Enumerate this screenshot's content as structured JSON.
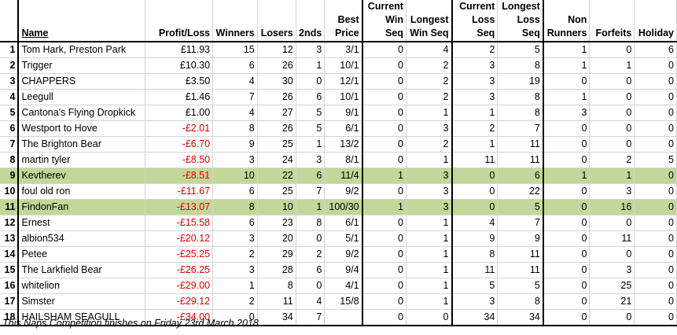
{
  "headers": {
    "name": "Name",
    "profit": "Profit/Loss",
    "winners": "Winners",
    "losers": "Losers",
    "seconds": "2nds",
    "best_price": "Best Price",
    "cur_win": "Current Win Seq",
    "long_win": "Longest Win Seq",
    "cur_loss": "Current Loss Seq",
    "long_loss": "Longest Loss Seq",
    "non_runners": "Non Runners",
    "forfeits": "Forfeits",
    "holiday": "Holiday"
  },
  "rows": [
    {
      "pos": "1",
      "name": "Tom Hark, Preston Park",
      "profit": "£11.93",
      "winners": "15",
      "losers": "12",
      "seconds": "3",
      "best": "3/1",
      "cw": "0",
      "lw": "4",
      "cl": "2",
      "ll": "5",
      "nr": "1",
      "ff": "0",
      "hol": "6"
    },
    {
      "pos": "2",
      "name": "Trigger",
      "profit": "£10.30",
      "winners": "6",
      "losers": "26",
      "seconds": "1",
      "best": "10/1",
      "cw": "0",
      "lw": "2",
      "cl": "3",
      "ll": "8",
      "nr": "1",
      "ff": "1",
      "hol": "0"
    },
    {
      "pos": "3",
      "name": "CHAPPERS",
      "profit": "£3.50",
      "winners": "4",
      "losers": "30",
      "seconds": "0",
      "best": "12/1",
      "cw": "0",
      "lw": "2",
      "cl": "3",
      "ll": "19",
      "nr": "0",
      "ff": "0",
      "hol": "0"
    },
    {
      "pos": "4",
      "name": "Leegull",
      "profit": "£1.46",
      "winners": "7",
      "losers": "26",
      "seconds": "6",
      "best": "10/1",
      "cw": "0",
      "lw": "2",
      "cl": "3",
      "ll": "8",
      "nr": "1",
      "ff": "0",
      "hol": "0"
    },
    {
      "pos": "5",
      "name": "Cantona's Flying Dropkick",
      "profit": "£1.00",
      "winners": "4",
      "losers": "27",
      "seconds": "5",
      "best": "9/1",
      "cw": "0",
      "lw": "1",
      "cl": "1",
      "ll": "8",
      "nr": "3",
      "ff": "0",
      "hol": "0"
    },
    {
      "pos": "6",
      "name": "Westport to Hove",
      "profit": "-£2.01",
      "winners": "8",
      "losers": "26",
      "seconds": "5",
      "best": "6/1",
      "cw": "0",
      "lw": "3",
      "cl": "2",
      "ll": "7",
      "nr": "0",
      "ff": "0",
      "hol": "0"
    },
    {
      "pos": "7",
      "name": "The Brighton Bear",
      "profit": "-£6.70",
      "winners": "9",
      "losers": "25",
      "seconds": "1",
      "best": "13/2",
      "cw": "0",
      "lw": "2",
      "cl": "1",
      "ll": "11",
      "nr": "0",
      "ff": "0",
      "hol": "0"
    },
    {
      "pos": "8",
      "name": "martin tyler",
      "profit": "-£8.50",
      "winners": "3",
      "losers": "24",
      "seconds": "3",
      "best": "8/1",
      "cw": "0",
      "lw": "1",
      "cl": "11",
      "ll": "11",
      "nr": "0",
      "ff": "2",
      "hol": "5"
    },
    {
      "pos": "9",
      "name": "Kevtherev",
      "profit": "-£8.51",
      "winners": "10",
      "losers": "22",
      "seconds": "6",
      "best": "11/4",
      "cw": "1",
      "lw": "3",
      "cl": "0",
      "ll": "6",
      "nr": "1",
      "ff": "1",
      "hol": "0",
      "highlight": true
    },
    {
      "pos": "10",
      "name": "foul old ron",
      "profit": "-£11.67",
      "winners": "6",
      "losers": "25",
      "seconds": "7",
      "best": "9/2",
      "cw": "0",
      "lw": "3",
      "cl": "0",
      "ll": "22",
      "nr": "0",
      "ff": "3",
      "hol": "0"
    },
    {
      "pos": "11",
      "name": "FindonFan",
      "profit": "-£13.07",
      "winners": "8",
      "losers": "10",
      "seconds": "1",
      "best": "100/30",
      "cw": "1",
      "lw": "3",
      "cl": "0",
      "ll": "5",
      "nr": "0",
      "ff": "16",
      "hol": "0",
      "highlight": true
    },
    {
      "pos": "12",
      "name": "Ernest",
      "profit": "-£15.58",
      "winners": "6",
      "losers": "23",
      "seconds": "8",
      "best": "6/1",
      "cw": "0",
      "lw": "1",
      "cl": "4",
      "ll": "7",
      "nr": "0",
      "ff": "0",
      "hol": "0"
    },
    {
      "pos": "13",
      "name": "albion534",
      "profit": "-£20.12",
      "winners": "3",
      "losers": "20",
      "seconds": "0",
      "best": "5/1",
      "cw": "0",
      "lw": "1",
      "cl": "9",
      "ll": "9",
      "nr": "0",
      "ff": "11",
      "hol": "0"
    },
    {
      "pos": "14",
      "name": "Petee",
      "profit": "-£25.25",
      "winners": "2",
      "losers": "29",
      "seconds": "2",
      "best": "9/2",
      "cw": "0",
      "lw": "1",
      "cl": "8",
      "ll": "11",
      "nr": "0",
      "ff": "0",
      "hol": "0"
    },
    {
      "pos": "15",
      "name": "The Larkfield Bear",
      "profit": "-£26.25",
      "winners": "3",
      "losers": "28",
      "seconds": "6",
      "best": "9/4",
      "cw": "0",
      "lw": "1",
      "cl": "11",
      "ll": "11",
      "nr": "0",
      "ff": "3",
      "hol": "0"
    },
    {
      "pos": "16",
      "name": "whitelion",
      "profit": "-£29.00",
      "winners": "1",
      "losers": "8",
      "seconds": "0",
      "best": "4/1",
      "cw": "0",
      "lw": "1",
      "cl": "5",
      "ll": "5",
      "nr": "0",
      "ff": "25",
      "hol": "0"
    },
    {
      "pos": "17",
      "name": "Simster",
      "profit": "-£29.12",
      "winners": "2",
      "losers": "11",
      "seconds": "4",
      "best": "15/8",
      "cw": "0",
      "lw": "1",
      "cl": "3",
      "ll": "8",
      "nr": "0",
      "ff": "21",
      "hol": "0"
    },
    {
      "pos": "18",
      "name": "HAILSHAM SEAGULL",
      "profit": "-£34.00",
      "winners": "0",
      "losers": "34",
      "seconds": "7",
      "best": "",
      "cw": "0",
      "lw": "0",
      "cl": "34",
      "ll": "34",
      "nr": "0",
      "ff": "0",
      "hol": "0"
    }
  ],
  "colors": {
    "negative": "#e00000",
    "highlight": "#c4d79b"
  },
  "footer": "This Naps Competition finishes on Friday 23rd March 2018"
}
